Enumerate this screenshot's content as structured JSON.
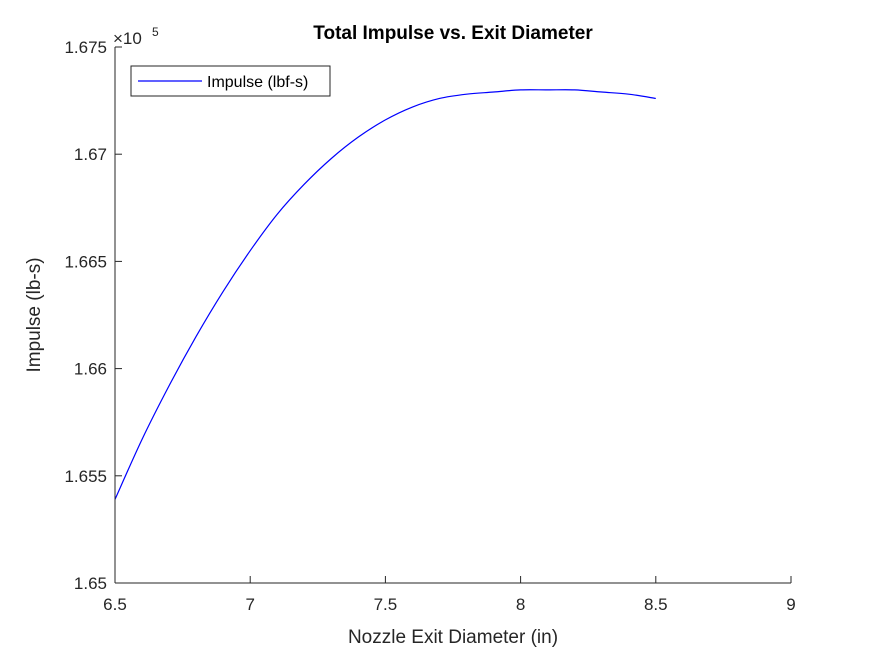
{
  "chart_data": {
    "type": "line",
    "title": "Total Impulse vs. Exit Diameter",
    "xlabel": "Nozzle Exit Diameter (in)",
    "ylabel": "Impulse (lb-s)",
    "xlim": [
      6.5,
      9
    ],
    "ylim": [
      1.65,
      1.675
    ],
    "y_exponent_label": "×10",
    "y_exponent_power": "5",
    "x_ticks": [
      "6.5",
      "7",
      "7.5",
      "8",
      "8.5",
      "9"
    ],
    "y_ticks": [
      "1.65",
      "1.655",
      "1.66",
      "1.665",
      "1.67",
      "1.675"
    ],
    "grid": false,
    "legend_position": "top-left",
    "series": [
      {
        "name": "Impulse (lbf-s)",
        "color": "#0000ff",
        "x": [
          6.5,
          6.6,
          6.7,
          6.8,
          6.9,
          7.0,
          7.1,
          7.2,
          7.3,
          7.4,
          7.5,
          7.6,
          7.7,
          7.8,
          7.9,
          8.0,
          8.1,
          8.2,
          8.3,
          8.4,
          8.5
        ],
        "y": [
          1.6539,
          1.6567,
          1.6592,
          1.6615,
          1.6636,
          1.6655,
          1.6672,
          1.6686,
          1.6698,
          1.6708,
          1.6716,
          1.6722,
          1.6726,
          1.6728,
          1.6729,
          1.673,
          1.673,
          1.673,
          1.6729,
          1.6728,
          1.6726
        ]
      }
    ]
  }
}
